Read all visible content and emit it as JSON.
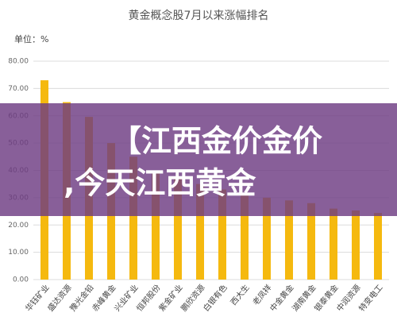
{
  "chart_data": {
    "type": "bar",
    "title": "黄金概念股7月以来涨幅排名",
    "unit_label": "单位：%",
    "categories": [
      "华钰矿业",
      "盛达资源",
      "豫光金铅",
      "赤峰黄金",
      "兴业矿业",
      "恒邦股份",
      "紫金矿业",
      "鹏欣资源",
      "白银有色",
      "西大生",
      "老凤祥",
      "中金黄金",
      "湖南黄金",
      "银泰黄金",
      "中润资源",
      "特变电工"
    ],
    "values": [
      73,
      65,
      59.6,
      50,
      45,
      40,
      37,
      35,
      33,
      31,
      30,
      29,
      28,
      26,
      25.3,
      24.4
    ],
    "color": "#f5b90f",
    "ylim": [
      0,
      80
    ],
    "yticks": [
      {
        "value": 0,
        "label": "0.00"
      },
      {
        "value": 10,
        "label": "10.00"
      },
      {
        "value": 20,
        "label": "20.00"
      },
      {
        "value": 30,
        "label": "30.00"
      },
      {
        "value": 40,
        "label": "40.00"
      },
      {
        "value": 50,
        "label": "50.00"
      },
      {
        "value": 60,
        "label": "60.00"
      },
      {
        "value": 70,
        "label": "70.00"
      },
      {
        "value": 80,
        "label": "80.00"
      }
    ],
    "grid": true
  },
  "banner": {
    "lines": [
      "【江西金价金价",
      ",今天江西黄金"
    ]
  }
}
